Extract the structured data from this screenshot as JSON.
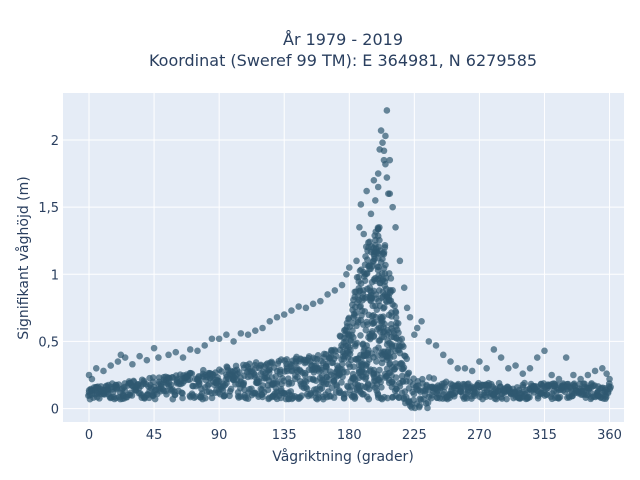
{
  "colors": {
    "plot_bg": "#e5ecf6",
    "grid": "#ffffff",
    "marker": "#2f5870",
    "text": "#2a3f5f"
  },
  "chart_data": {
    "type": "scatter",
    "title": "År 1979 - 2019",
    "subtitle": "Koordinat (Sweref 99 TM): E 364981, N 6279585",
    "xlabel": "Vågriktning (grader)",
    "ylabel": "Signifikant våghöjd (m)",
    "xlim": [
      -18,
      370
    ],
    "ylim": [
      -0.1,
      2.35
    ],
    "xticks": [
      0,
      45,
      90,
      135,
      180,
      225,
      270,
      315,
      360
    ],
    "xtick_labels": [
      "0",
      "45",
      "90",
      "135",
      "180",
      "225",
      "270",
      "315",
      "360"
    ],
    "yticks": [
      0,
      0.5,
      1,
      1.5,
      2
    ],
    "ytick_labels": [
      "0",
      "0,5",
      "1",
      "1,5",
      "2"
    ],
    "grid": true,
    "legend": "none",
    "marker_opacity": 0.7,
    "series": [
      {
        "values_note": "",
        "points": [
          [
            0,
            0.12
          ],
          [
            0,
            0.25
          ],
          [
            2,
            0.22
          ],
          [
            5,
            0.3
          ],
          [
            10,
            0.28
          ],
          [
            15,
            0.32
          ],
          [
            20,
            0.35
          ],
          [
            22,
            0.4
          ],
          [
            25,
            0.38
          ],
          [
            30,
            0.33
          ],
          [
            35,
            0.39
          ],
          [
            40,
            0.36
          ],
          [
            45,
            0.45
          ],
          [
            48,
            0.38
          ],
          [
            55,
            0.4
          ],
          [
            60,
            0.42
          ],
          [
            65,
            0.38
          ],
          [
            70,
            0.44
          ],
          [
            75,
            0.43
          ],
          [
            80,
            0.47
          ],
          [
            85,
            0.52
          ],
          [
            90,
            0.52
          ],
          [
            95,
            0.55
          ],
          [
            100,
            0.5
          ],
          [
            105,
            0.56
          ],
          [
            110,
            0.55
          ],
          [
            115,
            0.58
          ],
          [
            120,
            0.6
          ],
          [
            125,
            0.65
          ],
          [
            130,
            0.68
          ],
          [
            135,
            0.7
          ],
          [
            140,
            0.73
          ],
          [
            145,
            0.76
          ],
          [
            150,
            0.75
          ],
          [
            155,
            0.78
          ],
          [
            160,
            0.8
          ],
          [
            165,
            0.85
          ],
          [
            170,
            0.88
          ],
          [
            175,
            0.92
          ],
          [
            178,
            1.0
          ],
          [
            180,
            1.05
          ],
          [
            185,
            1.1
          ],
          [
            187,
            1.35
          ],
          [
            188,
            1.52
          ],
          [
            190,
            1.3
          ],
          [
            192,
            1.62
          ],
          [
            195,
            1.45
          ],
          [
            197,
            1.7
          ],
          [
            198,
            1.55
          ],
          [
            200,
            1.65
          ],
          [
            200,
            1.75
          ],
          [
            201,
            1.93
          ],
          [
            202,
            2.07
          ],
          [
            203,
            1.98
          ],
          [
            204,
            1.85
          ],
          [
            204,
            1.92
          ],
          [
            205,
            1.82
          ],
          [
            205,
            2.03
          ],
          [
            206,
            2.22
          ],
          [
            206,
            1.72
          ],
          [
            207,
            1.6
          ],
          [
            208,
            1.85
          ],
          [
            208,
            1.6
          ],
          [
            210,
            1.5
          ],
          [
            212,
            1.35
          ],
          [
            215,
            1.1
          ],
          [
            218,
            0.9
          ],
          [
            220,
            0.75
          ],
          [
            222,
            0.68
          ],
          [
            225,
            0.55
          ],
          [
            227,
            0.6
          ],
          [
            230,
            0.65
          ],
          [
            235,
            0.5
          ],
          [
            240,
            0.47
          ],
          [
            245,
            0.4
          ],
          [
            250,
            0.35
          ],
          [
            255,
            0.3
          ],
          [
            260,
            0.3
          ],
          [
            265,
            0.28
          ],
          [
            270,
            0.35
          ],
          [
            275,
            0.3
          ],
          [
            280,
            0.44
          ],
          [
            285,
            0.38
          ],
          [
            290,
            0.3
          ],
          [
            295,
            0.32
          ],
          [
            300,
            0.26
          ],
          [
            305,
            0.3
          ],
          [
            310,
            0.38
          ],
          [
            315,
            0.43
          ],
          [
            320,
            0.25
          ],
          [
            325,
            0.22
          ],
          [
            330,
            0.38
          ],
          [
            335,
            0.25
          ],
          [
            340,
            0.22
          ],
          [
            345,
            0.25
          ],
          [
            350,
            0.28
          ],
          [
            355,
            0.3
          ],
          [
            358,
            0.26
          ],
          [
            360,
            0.22
          ]
        ]
      }
    ]
  }
}
